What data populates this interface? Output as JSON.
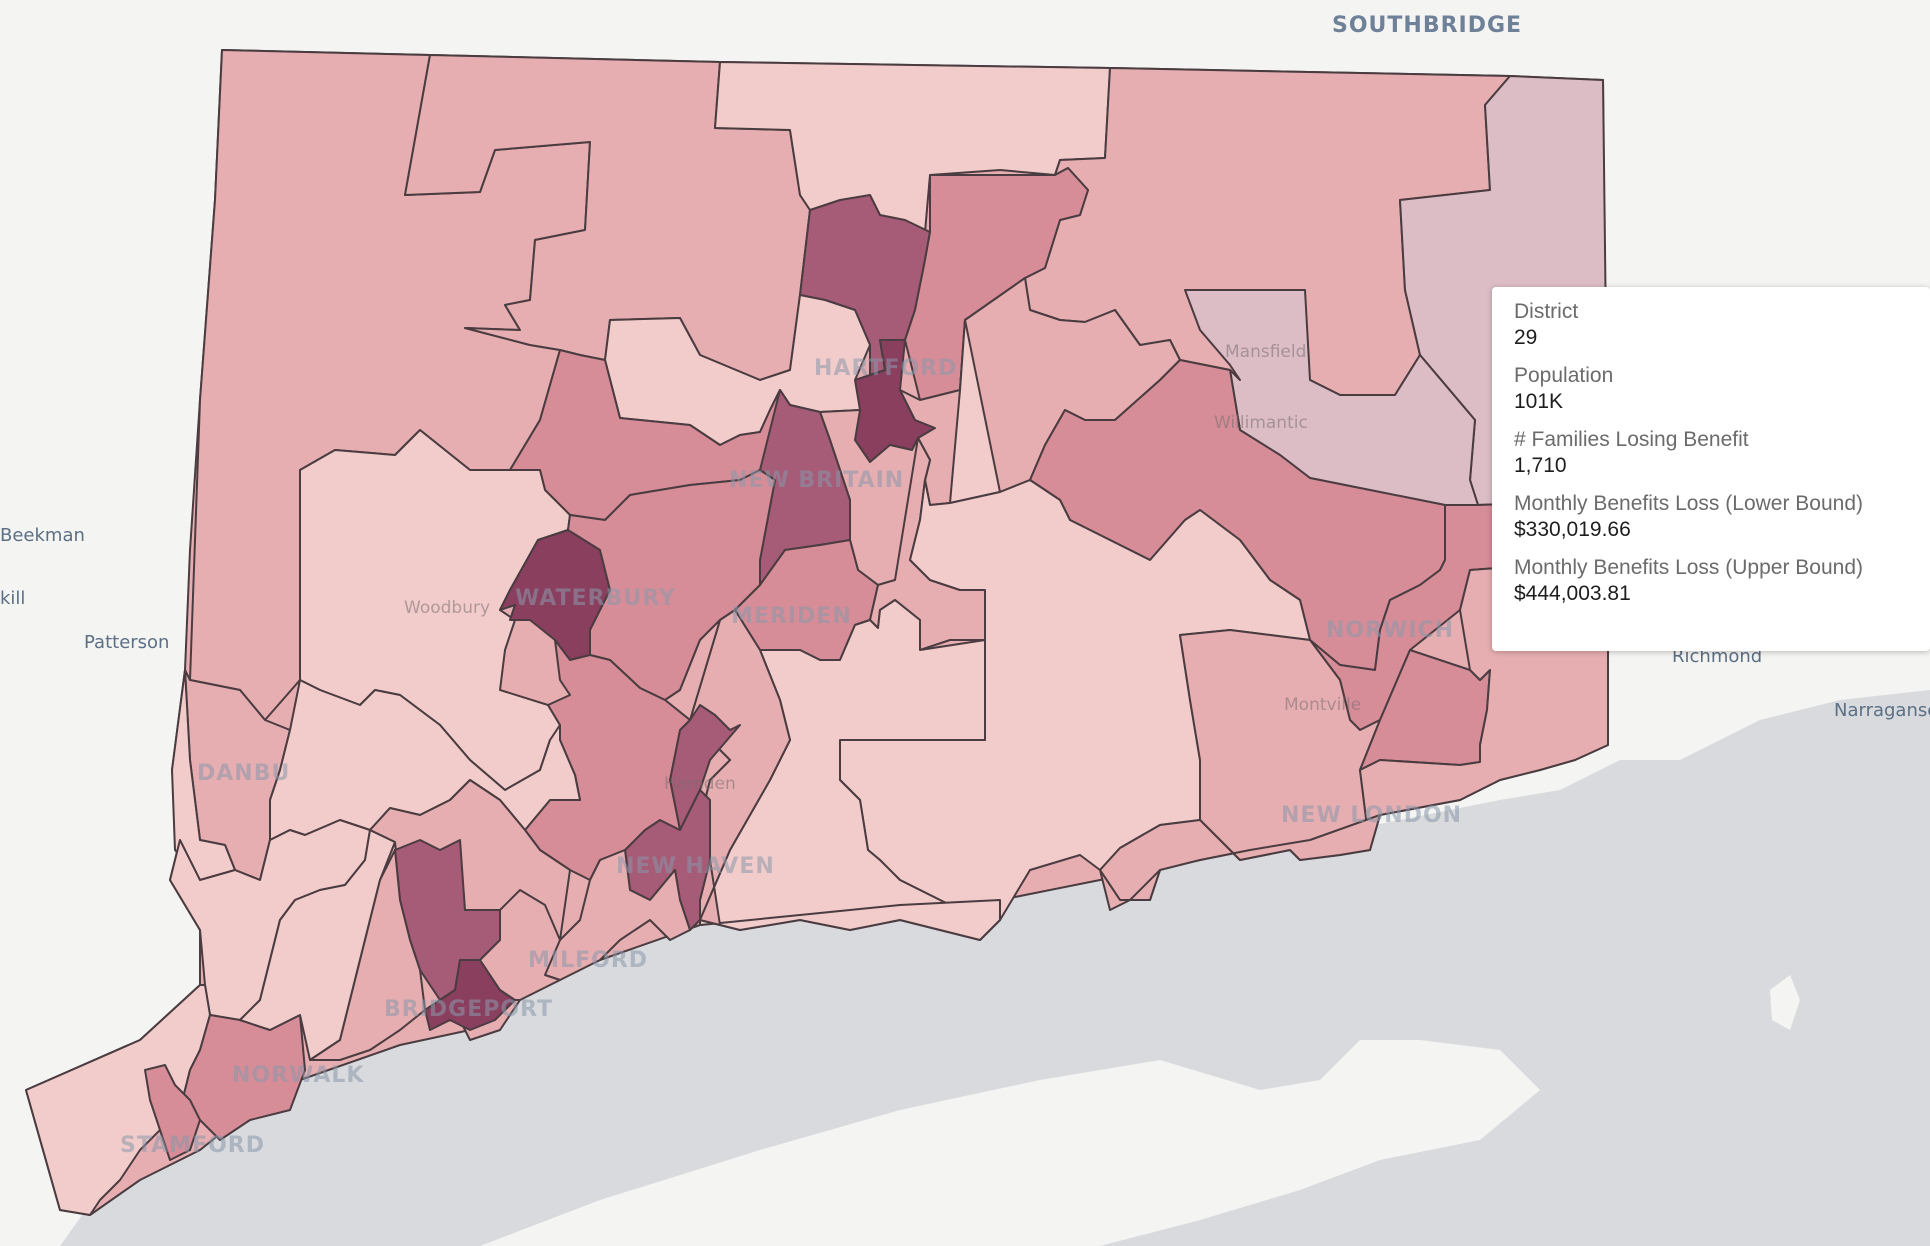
{
  "map": {
    "region_labels": {
      "southbridge": "SOUTHBRIDGE"
    },
    "outside_places": {
      "beekman": "Beekman",
      "kill": "kill",
      "patterson": "Patterson",
      "richmond": "Richmond",
      "narragansett": "Narraganse"
    },
    "city_labels": {
      "hartford": "HARTFORD",
      "new_britain": "NEW BRITAIN",
      "waterbury": "WATERBURY",
      "meriden": "MERIDEN",
      "danbury": "DANBU",
      "new_haven": "NEW HAVEN",
      "milford": "MILFORD",
      "bridgeport": "BRIDGEPORT",
      "norwalk": "NORWALK",
      "stamford": "STAMFORD",
      "norwich": "NORWICH",
      "new_london": "NEW LONDON"
    },
    "town_labels": {
      "mansfield": "Mansfield",
      "willimantic": "Willimantic",
      "woodbury": "Woodbury",
      "montville": "Montville",
      "hamden": "Hamden"
    },
    "colors": {
      "water": "#d8dadd",
      "land": "#f4f4f2",
      "shade_1": "#f2cccb",
      "shade_2": "#e6aeb1",
      "shade_3": "#d68d98",
      "shade_4": "#a65b76",
      "shade_5": "#8a3f5e",
      "highlight": "#dcbdc6"
    }
  },
  "tooltip": {
    "district_label": "District",
    "district_value": "29",
    "population_label": "Population",
    "population_value": "101K",
    "families_label": "# Families Losing Benefit",
    "families_value": "1,710",
    "lower_label": "Monthly Benefits Loss (Lower Bound)",
    "lower_value": "$330,019.66",
    "upper_label": "Monthly Benefits Loss (Upper Bound)",
    "upper_value": "$444,003.81"
  }
}
